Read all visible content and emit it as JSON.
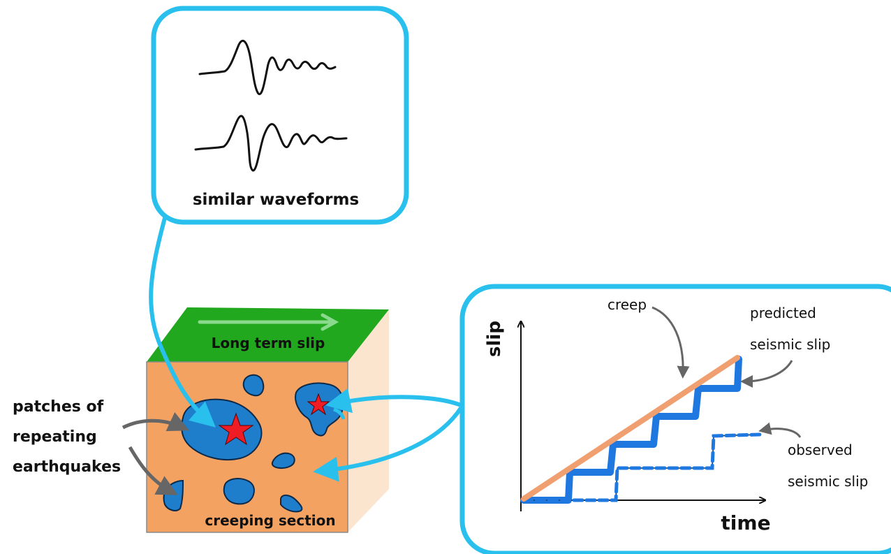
{
  "waveforms_panel": {
    "caption": "similar waveforms"
  },
  "fault_block": {
    "top_label": "Long term slip",
    "face_label": "creeping section",
    "patches_label_lines": [
      "patches of",
      "repeating",
      "earthquakes"
    ]
  },
  "slip_graph": {
    "y_axis_label": "slip",
    "x_axis_label": "time",
    "creep_label": "creep",
    "predicted_label_lines": [
      "predicted",
      "seismic slip"
    ],
    "observed_label_lines": [
      "observed",
      "seismic slip"
    ]
  },
  "colors": {
    "panel_border": "#29c0ee",
    "block_front": "#f4a261",
    "block_top": "#22a81e",
    "block_side": "#fbe5cf",
    "patch_fill": "#1e7ecb",
    "star": "#ee1c24",
    "creep_line": "#f0a070",
    "seismic_slip": "#1f78e0"
  }
}
